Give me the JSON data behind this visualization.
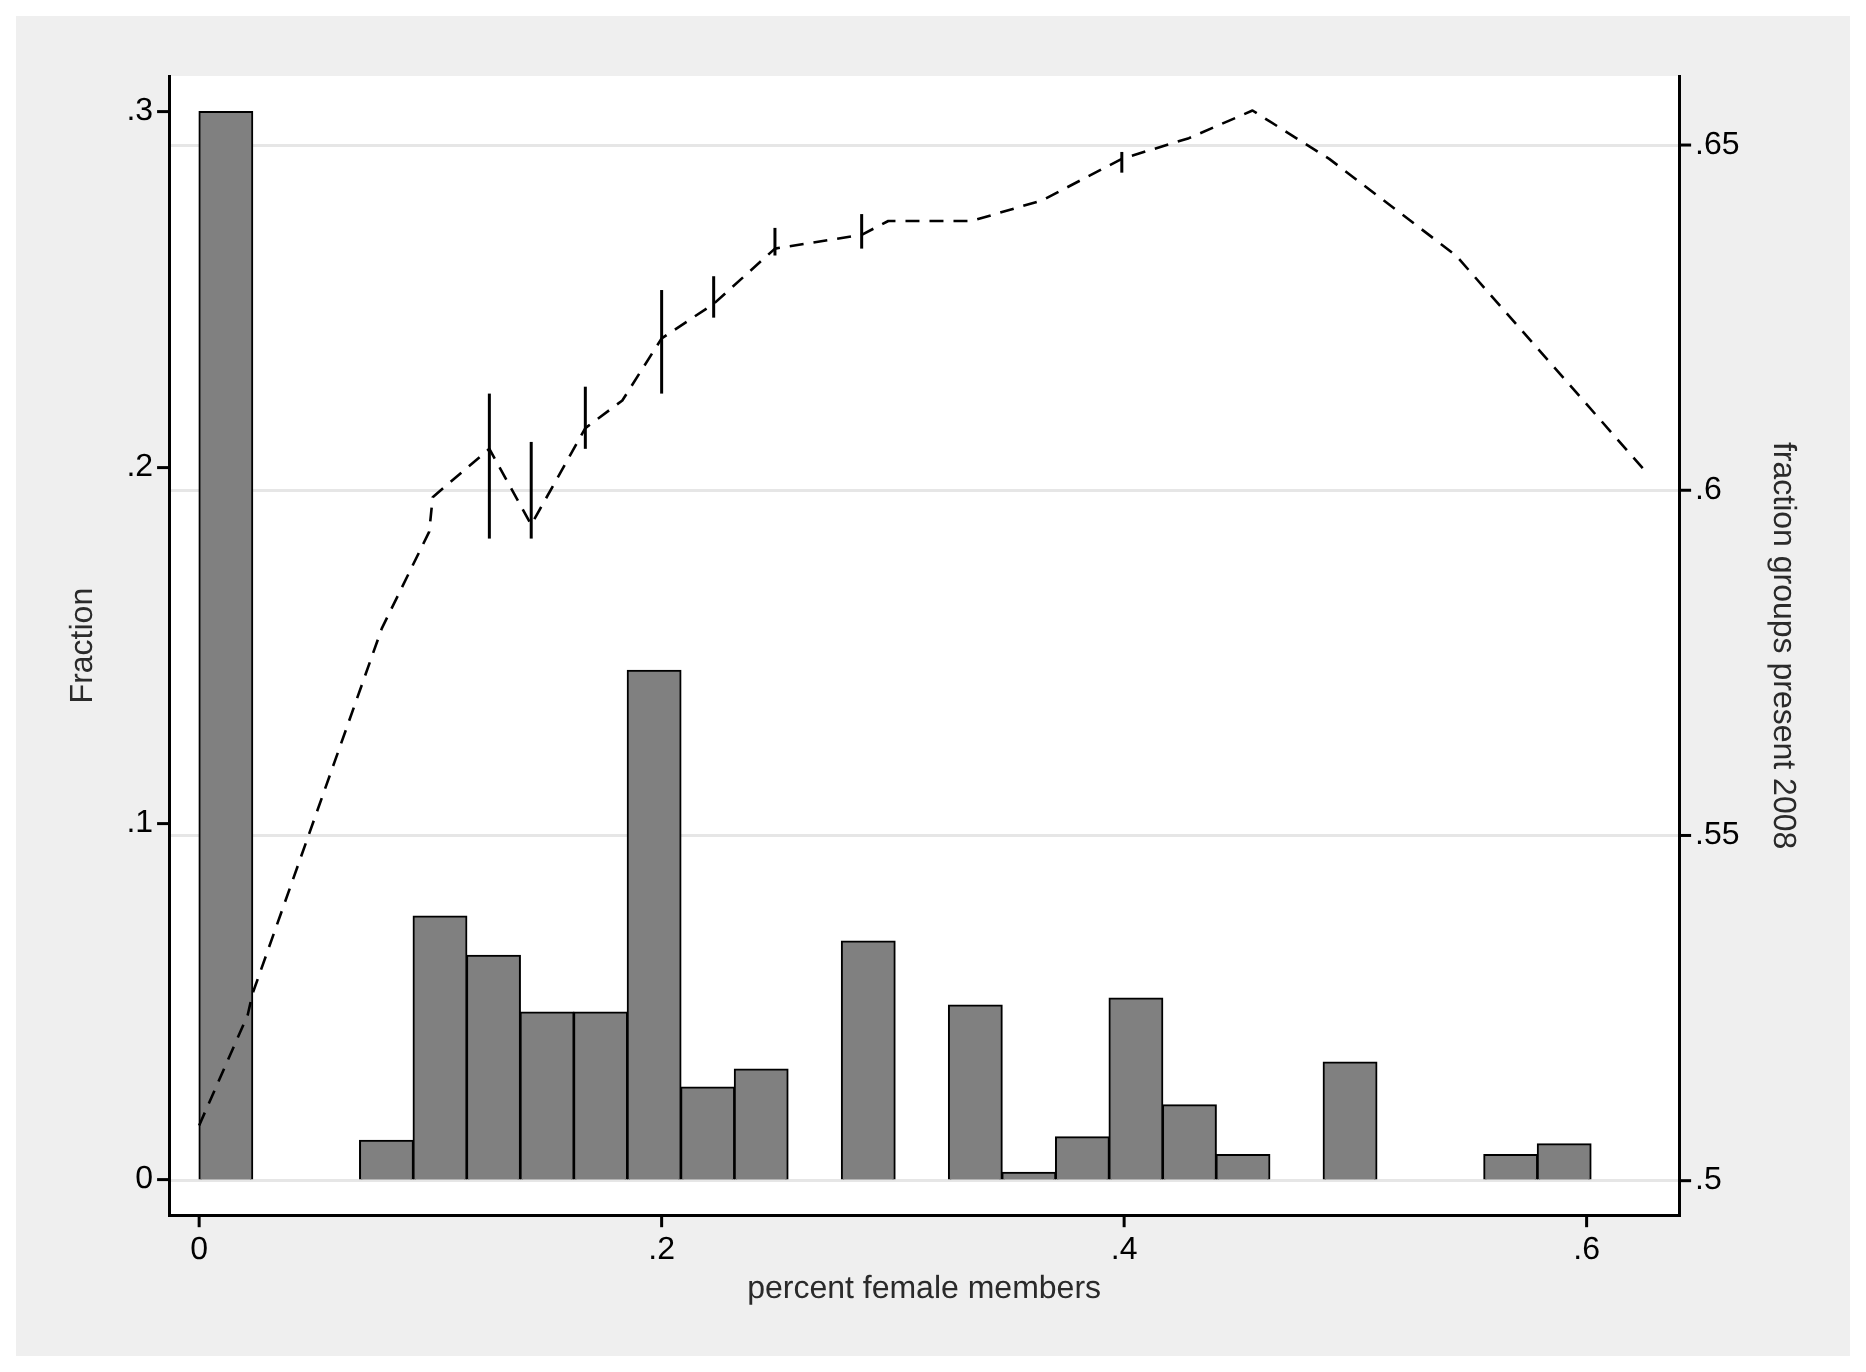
{
  "chart_data": {
    "type": "histogram",
    "xlabel": "percent female members",
    "ylabel": "Fraction",
    "y2label": "fraction groups present 2008",
    "bins": [
      0,
      0.0231,
      0.0463,
      0.0694,
      0.0926,
      0.1157,
      0.1389,
      0.162,
      0.1852,
      0.2083,
      0.2315,
      0.2546,
      0.2778,
      0.3009,
      0.3241,
      0.3472,
      0.3704,
      0.3935,
      0.4167,
      0.4398,
      0.463,
      0.4861,
      0.5093,
      0.5324,
      0.5556,
      0.5787,
      0.6019,
      0.625
    ],
    "values": [
      0.3,
      0,
      0,
      0.011,
      0.074,
      0.063,
      0.047,
      0.047,
      0.143,
      0.026,
      0.031,
      0,
      0.067,
      0,
      0.049,
      0.002,
      0.012,
      0.051,
      0.021,
      0.007,
      0,
      0.033,
      0,
      0,
      0.007,
      0.01,
      0
    ],
    "color": "#808080",
    "series": [
      {
        "type": "line",
        "color": "#000000",
        "line_style": "dashed",
        "axis": "y2",
        "x": [
          0,
          0.021,
          0.023,
          0.079,
          0.0995,
          0.101,
          0.1255,
          0.1436,
          0.167,
          0.183,
          0.2,
          0.2225,
          0.249,
          0.2865,
          0.298,
          0.334,
          0.3646,
          0.399,
          0.428,
          0.4555,
          0.4887,
          0.5435,
          0.6248
        ],
        "values": [
          0.508,
          0.524,
          0.527,
          0.58,
          0.594,
          0.599,
          0.606,
          0.595,
          0.609,
          0.613,
          0.622,
          0.627,
          0.635,
          0.637,
          0.639,
          0.639,
          0.642,
          0.648,
          0.651,
          0.655,
          0.648,
          0.634,
          0.603
        ],
        "errors": [
          null,
          null,
          null,
          null,
          null,
          null,
          [
            0.593,
            0.614
          ],
          [
            0.593,
            0.607
          ],
          [
            0.606,
            0.615
          ],
          null,
          [
            0.614,
            0.629
          ],
          [
            0.625,
            0.631
          ],
          [
            0.634,
            0.638
          ],
          [
            0.635,
            0.64
          ],
          null,
          null,
          null,
          [
            0.646,
            0.649
          ],
          null,
          null,
          null,
          null,
          null
        ]
      }
    ],
    "xlim": [
      -0.013,
      0.64
    ],
    "xticks": [
      0,
      {
        "value": 0.2,
        "label": ".2"
      },
      {
        "value": 0.4,
        "label": ".4"
      },
      {
        "value": 0.6,
        "label": ".6"
      }
    ],
    "ylim": [
      -0.01,
      0.31
    ],
    "yticks": [
      0,
      {
        "value": 0.1,
        "label": ".1"
      },
      {
        "value": 0.2,
        "label": ".2"
      },
      {
        "value": 0.3,
        "label": ".3"
      }
    ],
    "y2lim": [
      0.495,
      0.66
    ],
    "y2ticks": [
      {
        "value": 0.5,
        "label": ".5"
      },
      {
        "value": 0.55,
        "label": ".55"
      },
      {
        "value": 0.6,
        "label": ".6"
      },
      {
        "value": 0.65,
        "label": ".65"
      }
    ],
    "grid": "y2",
    "legend": false,
    "marker": "none"
  }
}
